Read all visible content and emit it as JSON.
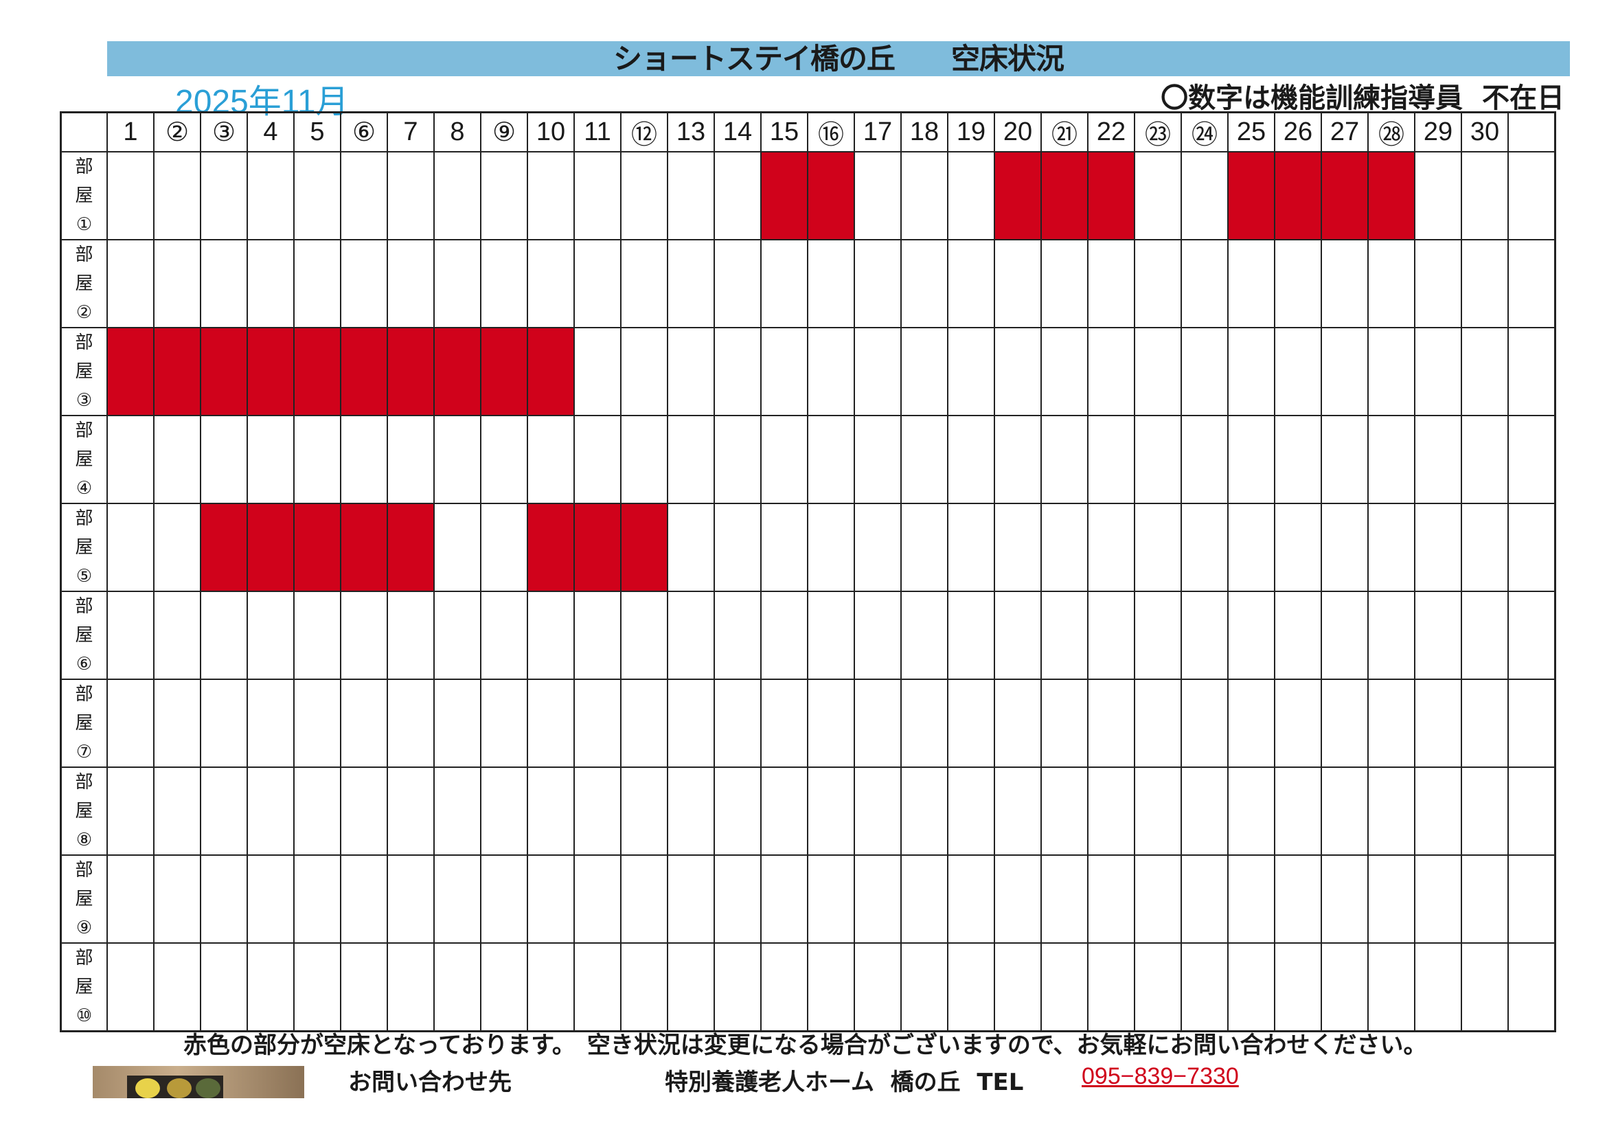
{
  "title": "ショートステイ橋の丘　　空床状況",
  "month": "2025年11月",
  "legend": "〇数字は機能訓練指導員  不在日",
  "days": [
    "1",
    "②",
    "③",
    "4",
    "5",
    "⑥",
    "7",
    "8",
    "⑨",
    "10",
    "11",
    "⑫",
    "13",
    "14",
    "15",
    "⑯",
    "17",
    "18",
    "19",
    "20",
    "㉑",
    "22",
    "㉓",
    "㉔",
    "25",
    "26",
    "27",
    "㉘",
    "29",
    "30",
    ""
  ],
  "rooms": [
    {
      "chars": [
        "部",
        "屋",
        "①"
      ],
      "vacant": [
        15,
        16,
        20,
        21,
        22,
        25,
        26,
        27,
        28
      ]
    },
    {
      "chars": [
        "部",
        "屋",
        "②"
      ],
      "vacant": []
    },
    {
      "chars": [
        "部",
        "屋",
        "③"
      ],
      "vacant": [
        1,
        2,
        3,
        4,
        5,
        6,
        7,
        8,
        9,
        10
      ]
    },
    {
      "chars": [
        "部",
        "屋",
        "④"
      ],
      "vacant": []
    },
    {
      "chars": [
        "部",
        "屋",
        "⑤"
      ],
      "vacant": [
        3,
        4,
        5,
        6,
        7,
        10,
        11,
        12
      ]
    },
    {
      "chars": [
        "部",
        "屋",
        "⑥"
      ],
      "vacant": []
    },
    {
      "chars": [
        "部",
        "屋",
        "⑦"
      ],
      "vacant": []
    },
    {
      "chars": [
        "部",
        "屋",
        "⑧"
      ],
      "vacant": []
    },
    {
      "chars": [
        "部",
        "屋",
        "⑨"
      ],
      "vacant": []
    },
    {
      "chars": [
        "部",
        "屋",
        "⑩"
      ],
      "vacant": []
    }
  ],
  "colors": {
    "vacant": "#d0021b",
    "title_bar": "#7fbcdc",
    "month": "#2a9fd6"
  },
  "footer": {
    "note": "赤色の部分が空床となっております。　空き状況は変更になる場合がございますので、お気軽にお問い合わせください。",
    "contact_label": "お問い合わせ先",
    "facility": "特別養護老人ホーム  橋の丘  TEL",
    "phone": "095−839−7330"
  }
}
